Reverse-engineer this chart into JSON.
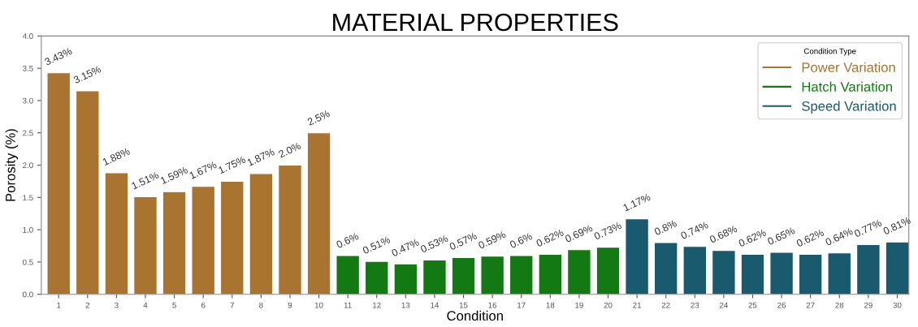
{
  "chart_data": {
    "type": "bar",
    "title": "MATERIAL PROPERTIES",
    "xlabel": "Condition",
    "ylabel": "Porosity (%)",
    "legend_title": "Condition Type",
    "legend": "top right",
    "grid": false,
    "categories": [
      "1",
      "2",
      "3",
      "4",
      "5",
      "6",
      "7",
      "8",
      "9",
      "10",
      "11",
      "12",
      "13",
      "14",
      "15",
      "16",
      "17",
      "18",
      "19",
      "20",
      "21",
      "22",
      "23",
      "24",
      "25",
      "26",
      "27",
      "28",
      "29",
      "30"
    ],
    "ylim": [
      0,
      4
    ],
    "yticks": [
      {
        "value": 0,
        "label": "0.0"
      },
      0.5,
      {
        "value": 1,
        "label": "1.0"
      },
      1.5,
      {
        "value": 2,
        "label": "2.0"
      },
      2.5,
      {
        "value": 3,
        "label": "3.0"
      },
      3.5,
      {
        "value": 4,
        "label": "4.0"
      }
    ],
    "series": [
      {
        "name": "Power Variation",
        "color": "#a97330",
        "values": [
          3.43,
          3.15,
          1.88,
          1.51,
          1.59,
          1.67,
          1.75,
          1.87,
          2.0,
          2.5,
          null,
          null,
          null,
          null,
          null,
          null,
          null,
          null,
          null,
          null,
          null,
          null,
          null,
          null,
          null,
          null,
          null,
          null,
          null,
          null
        ],
        "value_labels": [
          "3.43%",
          "3.15%",
          "1.88%",
          "1.51%",
          "1.59%",
          "1.67%",
          "1.75%",
          "1.87%",
          "2.0%",
          "2.5%",
          null,
          null,
          null,
          null,
          null,
          null,
          null,
          null,
          null,
          null,
          null,
          null,
          null,
          null,
          null,
          null,
          null,
          null,
          null,
          null
        ]
      },
      {
        "name": "Hatch Variation",
        "color": "#137a13",
        "values": [
          null,
          null,
          null,
          null,
          null,
          null,
          null,
          null,
          null,
          null,
          0.6,
          0.51,
          0.47,
          0.53,
          0.57,
          0.59,
          0.6,
          0.62,
          0.69,
          0.73,
          null,
          null,
          null,
          null,
          null,
          null,
          null,
          null,
          null,
          null
        ],
        "value_labels": [
          null,
          null,
          null,
          null,
          null,
          null,
          null,
          null,
          null,
          null,
          "0.6%",
          "0.51%",
          "0.47%",
          "0.53%",
          "0.57%",
          "0.59%",
          "0.6%",
          "0.62%",
          "0.69%",
          "0.73%",
          null,
          null,
          null,
          null,
          null,
          null,
          null,
          null,
          null,
          null
        ]
      },
      {
        "name": "Speed Variation",
        "color": "#1a5a6e",
        "values": [
          null,
          null,
          null,
          null,
          null,
          null,
          null,
          null,
          null,
          null,
          null,
          null,
          null,
          null,
          null,
          null,
          null,
          null,
          null,
          null,
          1.17,
          0.8,
          0.74,
          0.68,
          0.62,
          0.65,
          0.62,
          0.64,
          0.77,
          0.81
        ],
        "value_labels": [
          null,
          null,
          null,
          null,
          null,
          null,
          null,
          null,
          null,
          null,
          null,
          null,
          null,
          null,
          null,
          null,
          null,
          null,
          null,
          null,
          "1.17%",
          "0.8%",
          "0.74%",
          "0.68%",
          "0.62%",
          "0.65%",
          "0.62%",
          "0.64%",
          "0.77%",
          "0.81%"
        ]
      }
    ]
  }
}
